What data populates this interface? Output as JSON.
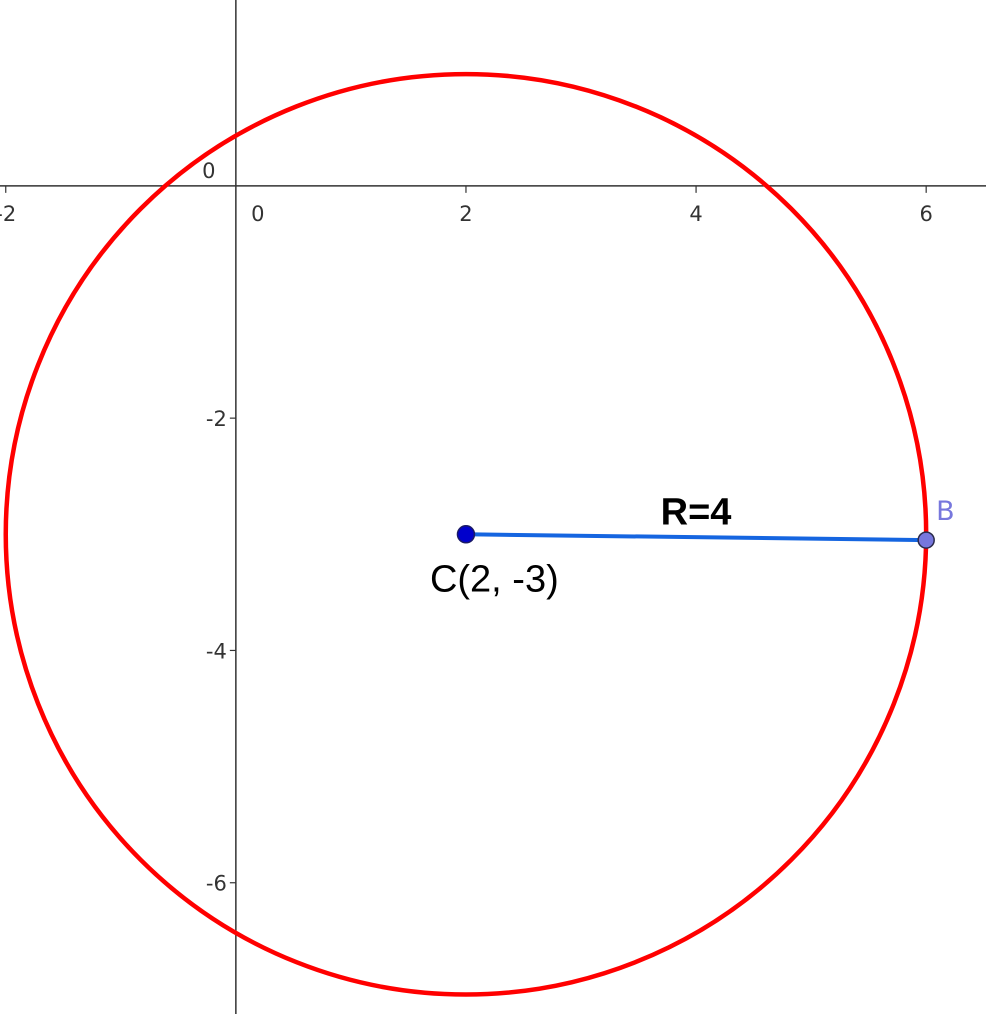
{
  "view": {
    "xmin": -2.05,
    "xmax": 6.52,
    "ymin": -7.13,
    "ymax": 1.6
  },
  "axes": {
    "origin_label": "0",
    "x_ticks": [
      {
        "value": -2,
        "label": "-2"
      },
      {
        "value": 0,
        "label": "0"
      },
      {
        "value": 2,
        "label": "2"
      },
      {
        "value": 4,
        "label": "4"
      },
      {
        "value": 6,
        "label": "6"
      }
    ],
    "y_ticks": [
      {
        "value": -2,
        "label": "-2"
      },
      {
        "value": -4,
        "label": "-4"
      },
      {
        "value": -6,
        "label": "-6"
      }
    ]
  },
  "circle": {
    "center": [
      2,
      -3
    ],
    "radius": 4,
    "color": "#ff0000"
  },
  "center_point": {
    "x": 2,
    "y": -3,
    "label": "C(2, -3)",
    "color": "#0000cc"
  },
  "point_b": {
    "x": 6,
    "y": -3.05,
    "label": "B",
    "color": "#7777dd"
  },
  "radius_segment": {
    "label": "R=4",
    "color": "#1565e0"
  }
}
